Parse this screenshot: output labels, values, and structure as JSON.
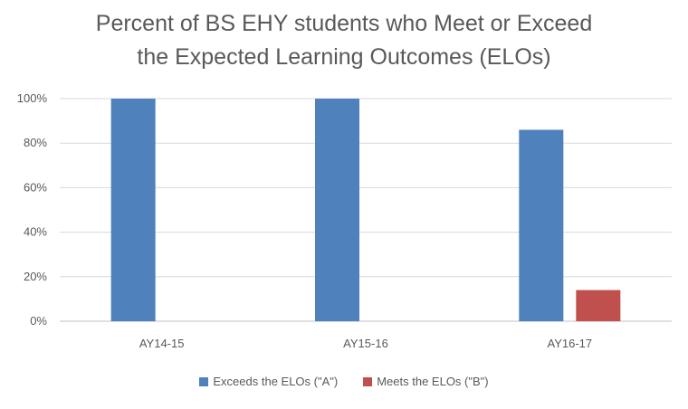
{
  "chart_data": {
    "type": "bar",
    "title_line1": "Percent of BS EHY students who Meet or Exceed",
    "title_line2": "the Expected Learning Outcomes (ELOs)",
    "categories": [
      "AY14-15",
      "AY15-16",
      "AY16-17"
    ],
    "series": [
      {
        "name": "Exceeds the ELOs (\"A\")",
        "values": [
          100,
          100,
          86
        ],
        "color": "#4f81bd"
      },
      {
        "name": "Meets the ELOs (\"B\")",
        "values": [
          0,
          0,
          14
        ],
        "color": "#c0504d"
      }
    ],
    "y_ticks": [
      "0%",
      "20%",
      "40%",
      "60%",
      "80%",
      "100%"
    ],
    "ylim": [
      0,
      100
    ],
    "grid": true,
    "legend_position": "bottom"
  }
}
